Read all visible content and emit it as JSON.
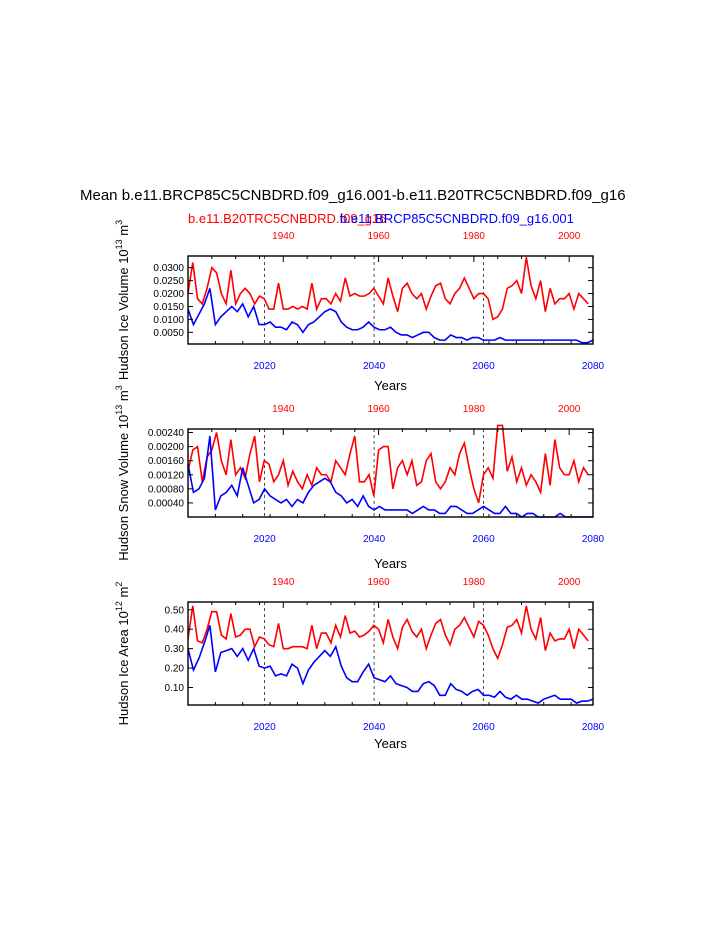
{
  "figure": {
    "title": "Mean b.e11.BRCP85C5CNBDRD.f09_g16.001-b.e11.B20TRC5CNBDRD.f09_g16",
    "legend_red": "b.e11.B20TRC5CNBDRD.f09_g16",
    "legend_blue": "b.e11.BRCP85C5CNBDRD.f09_g16.001",
    "colors": {
      "red": "#ff0000",
      "blue": "#0000ff"
    }
  },
  "chart_data": [
    {
      "type": "line",
      "ylabel": "Hudson Ice Volume 10",
      "ylabel_exp": "13",
      "ylabel_unit": " m",
      "ylabel_unit_exp": "3",
      "xlabel": "Years",
      "x_bottom": {
        "range": [
          2006,
          2080
        ],
        "ticks": [
          "2020",
          "2040",
          "2060",
          "2080"
        ]
      },
      "x_top": {
        "range": [
          1920,
          2005
        ],
        "ticks": [
          "1940",
          "1960",
          "1980",
          "2000"
        ]
      },
      "ylim": [
        0.0005,
        0.0345
      ],
      "yticks": [
        "0.0050",
        "0.0100",
        "0.0150",
        "0.0200",
        "0.0250",
        "0.0300"
      ],
      "series": [
        {
          "name": "b.e11.B20TRC5CNBDRD.f09_g16",
          "color": "red",
          "axis": "top",
          "x_start": 1920,
          "values": [
            0.02,
            0.032,
            0.018,
            0.016,
            0.022,
            0.03,
            0.028,
            0.02,
            0.016,
            0.029,
            0.016,
            0.02,
            0.022,
            0.02,
            0.016,
            0.019,
            0.018,
            0.014,
            0.014,
            0.024,
            0.014,
            0.014,
            0.015,
            0.014,
            0.015,
            0.014,
            0.024,
            0.014,
            0.018,
            0.018,
            0.016,
            0.02,
            0.017,
            0.026,
            0.019,
            0.02,
            0.019,
            0.019,
            0.02,
            0.022,
            0.019,
            0.016,
            0.026,
            0.019,
            0.013,
            0.022,
            0.024,
            0.02,
            0.018,
            0.02,
            0.014,
            0.019,
            0.023,
            0.024,
            0.018,
            0.016,
            0.02,
            0.022,
            0.026,
            0.022,
            0.018,
            0.02,
            0.02,
            0.018,
            0.01,
            0.011,
            0.014,
            0.022,
            0.023,
            0.025,
            0.02,
            0.034,
            0.023,
            0.018,
            0.025,
            0.013,
            0.022,
            0.016,
            0.018,
            0.018,
            0.02,
            0.014,
            0.02,
            0.018,
            0.016
          ]
        },
        {
          "name": "b.e11.BRCP85C5CNBDRD.f09_g16.001",
          "color": "blue",
          "axis": "bottom",
          "x_start": 2006,
          "values": [
            0.014,
            0.008,
            0.012,
            0.016,
            0.022,
            0.008,
            0.011,
            0.013,
            0.015,
            0.013,
            0.016,
            0.011,
            0.015,
            0.008,
            0.008,
            0.009,
            0.007,
            0.007,
            0.006,
            0.009,
            0.008,
            0.005,
            0.008,
            0.009,
            0.011,
            0.013,
            0.014,
            0.013,
            0.009,
            0.007,
            0.006,
            0.006,
            0.007,
            0.009,
            0.007,
            0.006,
            0.006,
            0.007,
            0.005,
            0.004,
            0.004,
            0.003,
            0.004,
            0.005,
            0.005,
            0.003,
            0.002,
            0.002,
            0.004,
            0.003,
            0.003,
            0.002,
            0.003,
            0.003,
            0.002,
            0.002,
            0.002,
            0.003,
            0.002,
            0.002,
            0.002,
            0.002,
            0.002,
            0.002,
            0.002,
            0.002,
            0.002,
            0.002,
            0.002,
            0.002,
            0.002,
            0.002,
            0.001,
            0.001,
            0.002
          ]
        }
      ]
    },
    {
      "type": "line",
      "ylabel": "Hudson Snow Volume 10",
      "ylabel_exp": "13",
      "ylabel_unit": " m",
      "ylabel_unit_exp": "3",
      "xlabel": "Years",
      "x_bottom": {
        "range": [
          2006,
          2080
        ],
        "ticks": [
          "2020",
          "2040",
          "2060",
          "2080"
        ]
      },
      "x_top": {
        "range": [
          1920,
          2005
        ],
        "ticks": [
          "1940",
          "1960",
          "1980",
          "2000"
        ]
      },
      "ylim": [
        0.0,
        0.0025
      ],
      "yticks": [
        "0.00040",
        "0.00080",
        "0.00120",
        "0.00160",
        "0.00200",
        "0.00240"
      ],
      "series": [
        {
          "name": "b.e11.B20TRC5CNBDRD.f09_g16",
          "color": "red",
          "axis": "top",
          "x_start": 1920,
          "values": [
            0.0013,
            0.0019,
            0.002,
            0.001,
            0.0017,
            0.0019,
            0.0024,
            0.0016,
            0.0012,
            0.0022,
            0.0012,
            0.0014,
            0.0011,
            0.0018,
            0.0023,
            0.001,
            0.0016,
            0.0015,
            0.001,
            0.0012,
            0.0016,
            0.0009,
            0.0013,
            0.001,
            0.0008,
            0.0012,
            0.0009,
            0.0014,
            0.0012,
            0.0012,
            0.001,
            0.0016,
            0.0014,
            0.0012,
            0.0018,
            0.0023,
            0.001,
            0.001,
            0.0012,
            0.0006,
            0.0019,
            0.002,
            0.002,
            0.0008,
            0.0014,
            0.0016,
            0.0012,
            0.0016,
            0.0009,
            0.001,
            0.0016,
            0.0018,
            0.001,
            0.0008,
            0.001,
            0.0014,
            0.0012,
            0.0018,
            0.0021,
            0.0014,
            0.0008,
            0.0004,
            0.0012,
            0.0014,
            0.0011,
            0.0026,
            0.0026,
            0.0013,
            0.0017,
            0.001,
            0.0014,
            0.0009,
            0.0012,
            0.001,
            0.0007,
            0.0018,
            0.0009,
            0.0022,
            0.0014,
            0.0012,
            0.0012,
            0.0016,
            0.001,
            0.0014,
            0.0012
          ]
        },
        {
          "name": "b.e11.BRCP85C5CNBDRD.f09_g16.001",
          "color": "blue",
          "axis": "bottom",
          "x_start": 2006,
          "values": [
            0.0015,
            0.0007,
            0.0008,
            0.0011,
            0.0023,
            0.0002,
            0.0006,
            0.0007,
            0.0009,
            0.0006,
            0.0014,
            0.0009,
            0.0004,
            0.0005,
            0.0008,
            0.0006,
            0.0005,
            0.0004,
            0.0005,
            0.0003,
            0.0005,
            0.0004,
            0.0007,
            0.0009,
            0.001,
            0.0011,
            0.001,
            0.0007,
            0.0006,
            0.0004,
            0.0005,
            0.0003,
            0.0006,
            0.0003,
            0.0002,
            0.0003,
            0.0002,
            0.0002,
            0.0002,
            0.0002,
            0.0002,
            0.0001,
            0.0002,
            0.0003,
            0.0002,
            0.0002,
            0.0001,
            0.0001,
            0.0003,
            0.0003,
            0.0002,
            0.0001,
            0.0001,
            0.0002,
            0.0003,
            0.0002,
            0.0001,
            0.0001,
            0.0003,
            0.0001,
            0.0001,
            0.0,
            0.0001,
            0.0001,
            0.0,
            0.0,
            0.0,
            0.0,
            0.0001,
            0.0,
            0.0,
            0.0,
            0.0,
            0.0,
            0.0
          ]
        }
      ]
    },
    {
      "type": "line",
      "ylabel": "Hudson Ice Area 10",
      "ylabel_exp": "12",
      "ylabel_unit": " m",
      "ylabel_unit_exp": "2",
      "xlabel": "Years",
      "x_bottom": {
        "range": [
          2006,
          2080
        ],
        "ticks": [
          "2020",
          "2040",
          "2060",
          "2080"
        ]
      },
      "x_top": {
        "range": [
          1920,
          2005
        ],
        "ticks": [
          "1940",
          "1960",
          "1980",
          "2000"
        ]
      },
      "ylim": [
        0.01,
        0.54
      ],
      "yticks": [
        "0.10",
        "0.20",
        "0.30",
        "0.40",
        "0.50"
      ],
      "series": [
        {
          "name": "b.e11.B20TRC5CNBDRD.f09_g16",
          "color": "red",
          "axis": "top",
          "x_start": 1920,
          "values": [
            0.35,
            0.52,
            0.34,
            0.33,
            0.4,
            0.49,
            0.49,
            0.37,
            0.35,
            0.48,
            0.36,
            0.37,
            0.4,
            0.4,
            0.31,
            0.36,
            0.35,
            0.32,
            0.31,
            0.43,
            0.3,
            0.3,
            0.31,
            0.31,
            0.31,
            0.3,
            0.42,
            0.3,
            0.38,
            0.38,
            0.33,
            0.42,
            0.36,
            0.47,
            0.38,
            0.39,
            0.36,
            0.37,
            0.39,
            0.42,
            0.4,
            0.33,
            0.45,
            0.36,
            0.3,
            0.41,
            0.45,
            0.39,
            0.36,
            0.4,
            0.3,
            0.37,
            0.43,
            0.45,
            0.37,
            0.32,
            0.4,
            0.42,
            0.46,
            0.41,
            0.36,
            0.44,
            0.42,
            0.37,
            0.3,
            0.25,
            0.32,
            0.41,
            0.42,
            0.45,
            0.38,
            0.52,
            0.4,
            0.35,
            0.46,
            0.29,
            0.38,
            0.34,
            0.35,
            0.35,
            0.4,
            0.3,
            0.4,
            0.37,
            0.34
          ]
        },
        {
          "name": "b.e11.BRCP85C5CNBDRD.f09_g16.001",
          "color": "blue",
          "axis": "bottom",
          "x_start": 2006,
          "values": [
            0.3,
            0.19,
            0.25,
            0.33,
            0.42,
            0.18,
            0.28,
            0.29,
            0.3,
            0.26,
            0.3,
            0.24,
            0.3,
            0.21,
            0.2,
            0.21,
            0.16,
            0.17,
            0.16,
            0.22,
            0.2,
            0.12,
            0.19,
            0.23,
            0.26,
            0.29,
            0.26,
            0.31,
            0.21,
            0.15,
            0.13,
            0.13,
            0.18,
            0.22,
            0.15,
            0.14,
            0.13,
            0.16,
            0.12,
            0.11,
            0.1,
            0.08,
            0.08,
            0.12,
            0.13,
            0.11,
            0.06,
            0.06,
            0.12,
            0.09,
            0.08,
            0.06,
            0.08,
            0.09,
            0.06,
            0.06,
            0.05,
            0.08,
            0.05,
            0.04,
            0.06,
            0.04,
            0.04,
            0.03,
            0.02,
            0.04,
            0.05,
            0.06,
            0.04,
            0.04,
            0.04,
            0.02,
            0.03,
            0.03,
            0.04
          ]
        }
      ]
    }
  ]
}
